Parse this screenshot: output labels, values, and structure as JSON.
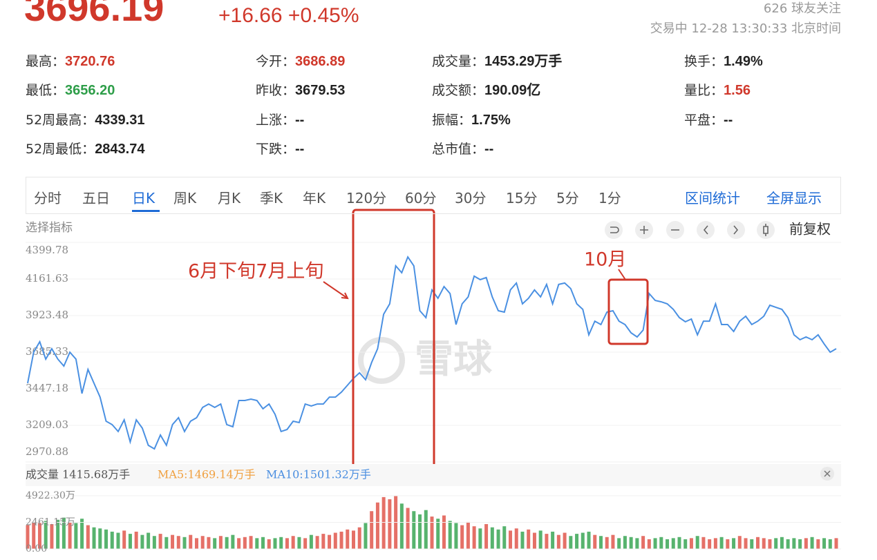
{
  "header": {
    "price": "3696.19",
    "change": "+16.66 +0.45%",
    "followers": "626 球友关注",
    "status": "交易中 12-28 13:30:33 北京时间"
  },
  "stats": [
    [
      {
        "label": "最高：",
        "value": "3720.76",
        "color": "#d0382b"
      },
      {
        "label": "今开：",
        "value": "3686.89",
        "color": "#d0382b"
      },
      {
        "label": "成交量：",
        "value": "1453.29万手",
        "color": "#222"
      },
      {
        "label": "换手：",
        "value": "1.49%",
        "color": "#222"
      }
    ],
    [
      {
        "label": "最低：",
        "value": "3656.20",
        "color": "#2e9e49"
      },
      {
        "label": "昨收：",
        "value": "3679.53",
        "color": "#222"
      },
      {
        "label": "成交额：",
        "value": "190.09亿",
        "color": "#222"
      },
      {
        "label": "量比：",
        "value": "1.56",
        "color": "#d0382b"
      }
    ],
    [
      {
        "label": "52周最高：",
        "value": "4339.31",
        "color": "#222"
      },
      {
        "label": "上涨：",
        "value": "--",
        "color": "#222"
      },
      {
        "label": "振幅：",
        "value": "1.75%",
        "color": "#222"
      },
      {
        "label": "平盘：",
        "value": "--",
        "color": "#222"
      }
    ],
    [
      {
        "label": "52周最低：",
        "value": "2843.74",
        "color": "#222"
      },
      {
        "label": "下跌：",
        "value": "--",
        "color": "#222"
      },
      {
        "label": "总市值：",
        "value": "--",
        "color": "#222"
      }
    ]
  ],
  "tabs": [
    "分时",
    "五日",
    "日K",
    "周K",
    "月K",
    "季K",
    "年K",
    "120分",
    "60分",
    "30分",
    "15分",
    "5分",
    "1分"
  ],
  "active_tab": 2,
  "tools": [
    "区间统计",
    "全屏显示"
  ],
  "indicator_label": "选择指标",
  "adjust": "前复权",
  "watermark": "雪球",
  "annotations": [
    {
      "text": "6月下旬7月上旬"
    },
    {
      "text": "10月"
    }
  ],
  "volume_header": {
    "total": "成交量 1415.68万手",
    "ma5": "MA5:1469.14万手",
    "ma10": "MA10:1501.32万手"
  },
  "chart_data": [
    {
      "type": "line",
      "color": "#4a90e2",
      "ylim": [
        2970.88,
        4399.78
      ],
      "yticks": [
        4399.78,
        4161.63,
        3923.48,
        3685.33,
        3447.18,
        3209.03,
        2970.88
      ],
      "grid": true,
      "values": [
        3483,
        3685,
        3753,
        3640,
        3708,
        3640,
        3595,
        3685,
        3640,
        3416,
        3573,
        3483,
        3393,
        3236,
        3214,
        3169,
        3245,
        3101,
        3245,
        3191,
        3079,
        3056,
        3146,
        3079,
        3214,
        3259,
        3169,
        3236,
        3259,
        3326,
        3348,
        3326,
        3348,
        3214,
        3200,
        3371,
        3371,
        3380,
        3371,
        3317,
        3348,
        3281,
        3169,
        3182,
        3236,
        3227,
        3348,
        3335,
        3348,
        3348,
        3393,
        3393,
        3425,
        3470,
        3515,
        3551,
        3506,
        3618,
        3708,
        3932,
        4000,
        4247,
        4202,
        4305,
        4247,
        3955,
        3910,
        4090,
        4036,
        4112,
        4067,
        3865,
        4000,
        4045,
        4180,
        4157,
        4171,
        4045,
        3955,
        3946,
        4090,
        4135,
        4000,
        4036,
        4090,
        4045,
        4126,
        4000,
        4126,
        4135,
        4099,
        4000,
        3964,
        3798,
        3887,
        3865,
        3946,
        3955,
        3887,
        3865,
        3811,
        3784,
        3829,
        4067,
        4022,
        4013,
        4000,
        3964,
        3910,
        3883,
        3901,
        3798,
        3887,
        3887,
        4000,
        3865,
        3865,
        3820,
        3887,
        3919,
        3865,
        3887,
        3919,
        3991,
        3977,
        3964,
        3910,
        3798,
        3766,
        3784,
        3766,
        3798,
        3739,
        3685,
        3708
      ]
    },
    {
      "type": "bar",
      "up_color": "#e0574c",
      "down_color": "#3aa655",
      "ylim": [
        0,
        4922.3
      ],
      "yticks": [
        {
          "value": 4922.3,
          "label": "4922.30万"
        },
        {
          "value": 2461.15,
          "label": "2461.15万"
        },
        {
          "value": 0,
          "label": "0.00"
        }
      ],
      "values": [
        2200,
        2500,
        2400,
        2600,
        2300,
        2700,
        2900,
        2500,
        2400,
        2800,
        2200,
        2000,
        1900,
        1800,
        1600,
        1500,
        1700,
        1400,
        1600,
        1300,
        1500,
        1200,
        1400,
        1100,
        1300,
        1200,
        1100,
        1300,
        1000,
        1200,
        1100,
        1000,
        1200,
        1100,
        1300,
        1000,
        1100,
        1200,
        1000,
        1100,
        900,
        1000,
        1100,
        1000,
        1200,
        1100,
        1000,
        1300,
        1200,
        1400,
        1300,
        1500,
        1600,
        1800,
        1700,
        2000,
        2400,
        3500,
        4300,
        4800,
        4600,
        4900,
        4200,
        3800,
        3500,
        3200,
        3600,
        3000,
        2800,
        3100,
        2600,
        2400,
        2200,
        2500,
        2100,
        1900,
        2300,
        2000,
        1800,
        2100,
        1700,
        1900,
        1600,
        1800,
        1500,
        1700,
        1400,
        1600,
        1300,
        1500,
        1200,
        1400,
        1500,
        1600,
        1300,
        1200,
        1100,
        1300,
        1000,
        1200,
        1100,
        1000,
        1200,
        900,
        1000,
        1100,
        900,
        1000,
        1100,
        900,
        1000,
        1200,
        1100,
        900,
        1000,
        1100,
        900,
        1000,
        1200,
        1000,
        900,
        1100,
        1000,
        900,
        1000,
        1100,
        900,
        1000,
        900,
        1000,
        1100,
        900,
        1000,
        900,
        1000
      ]
    }
  ]
}
